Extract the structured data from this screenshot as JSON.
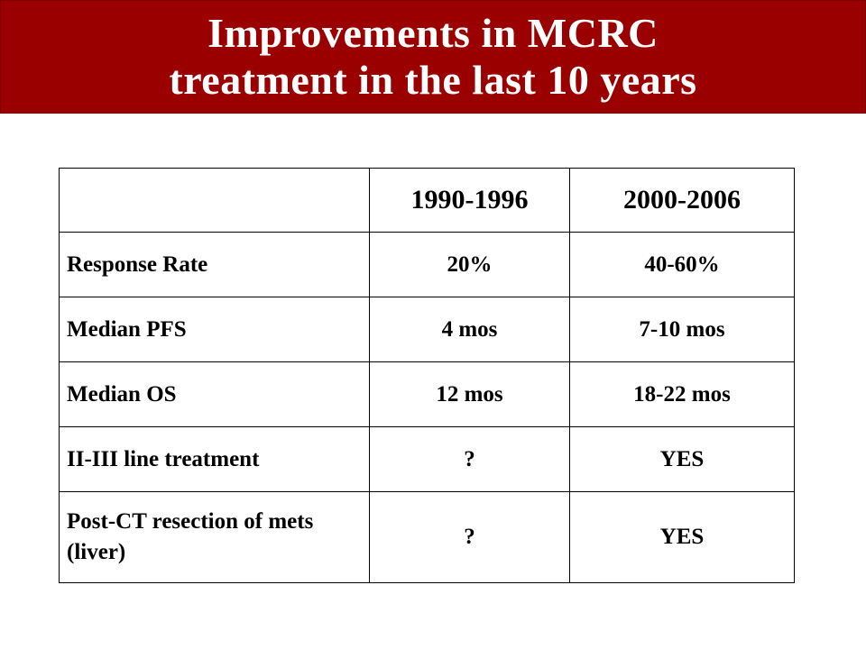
{
  "slide": {
    "title_line1": "Improvements in MCRC",
    "title_line2": "treatment in the last 10 years",
    "banner_color": "#9b0000"
  },
  "table": {
    "headers": [
      "",
      "1990-1996",
      "2000-2006"
    ],
    "rows": [
      {
        "label": "Response Rate",
        "a": "20%",
        "b": "40-60%"
      },
      {
        "label": "Median PFS",
        "a": "4 mos",
        "b": "7-10 mos"
      },
      {
        "label": "Median OS",
        "a": "12 mos",
        "b": "18-22 mos"
      },
      {
        "label": "II-III line treatment",
        "a": "?",
        "b": "YES"
      },
      {
        "label": "Post-CT resection of mets (liver)",
        "a": "?",
        "b": "YES"
      }
    ]
  }
}
